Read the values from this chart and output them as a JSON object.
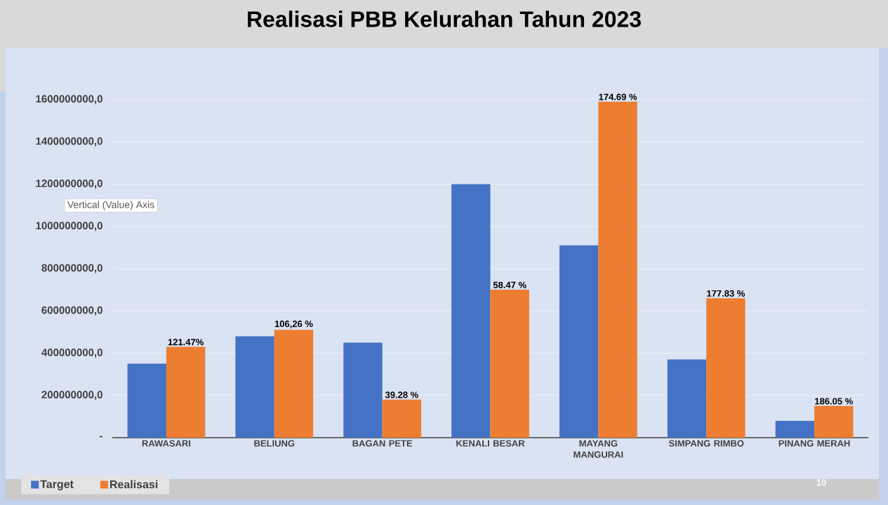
{
  "chart_data": {
    "type": "bar",
    "title": "Realisasi PBB Kelurahan Tahun 2023",
    "categories": [
      "RAWASARI",
      "BELIUNG",
      "BAGAN PETE",
      "KENALI BESAR",
      "MAYANG MANGURAI",
      "SIMPANG RIMBO",
      "PINANG MERAH"
    ],
    "series": [
      {
        "name": "Target",
        "color": "#4472c4",
        "values": [
          350000000,
          480000000,
          450000000,
          1200000000,
          910000000,
          370000000,
          80000000
        ]
      },
      {
        "name": "Realisasi",
        "color": "#ed7d31",
        "values": [
          430000000,
          510000000,
          180000000,
          700000000,
          1590000000,
          660000000,
          150000000
        ]
      }
    ],
    "ylim": [
      0,
      1600000000
    ],
    "yticks": [
      {
        "value": 0,
        "label": "-"
      },
      {
        "value": 200000000,
        "label": "200000000,0"
      },
      {
        "value": 400000000,
        "label": "400000000,0"
      },
      {
        "value": 600000000,
        "label": "600000000,0"
      },
      {
        "value": 800000000,
        "label": "800000000,0"
      },
      {
        "value": 1000000000,
        "label": "1000000000,0"
      },
      {
        "value": 1200000000,
        "label": "1200000000,0"
      },
      {
        "value": 1400000000,
        "label": "1400000000,0"
      },
      {
        "value": 1600000000,
        "label": "1600000000,0"
      }
    ],
    "grid": "y",
    "legend": "bottom left",
    "annotations": [
      "Vertical (Value) Axis",
      "10",
      {
        "text": "121.47%",
        "x": "RAWASARI",
        "y": 430000000
      },
      {
        "text": "106,26 %",
        "x": "BELIUNG",
        "y": 510000000
      },
      {
        "text": "39.28 %",
        "x": "BAGAN PETE",
        "y": 180000000
      },
      {
        "text": "58.47 %",
        "x": "KENALI BESAR",
        "y": 700000000
      },
      {
        "text": "174.69 %",
        "x": "MAYANG MANGURAI",
        "y": 1590000000
      },
      {
        "text": "177.83 %",
        "x": "SIMPANG RIMBO",
        "y": 660000000
      },
      {
        "text": "186.05 %",
        "x": "PINANG MERAH",
        "y": 150000000
      }
    ]
  }
}
